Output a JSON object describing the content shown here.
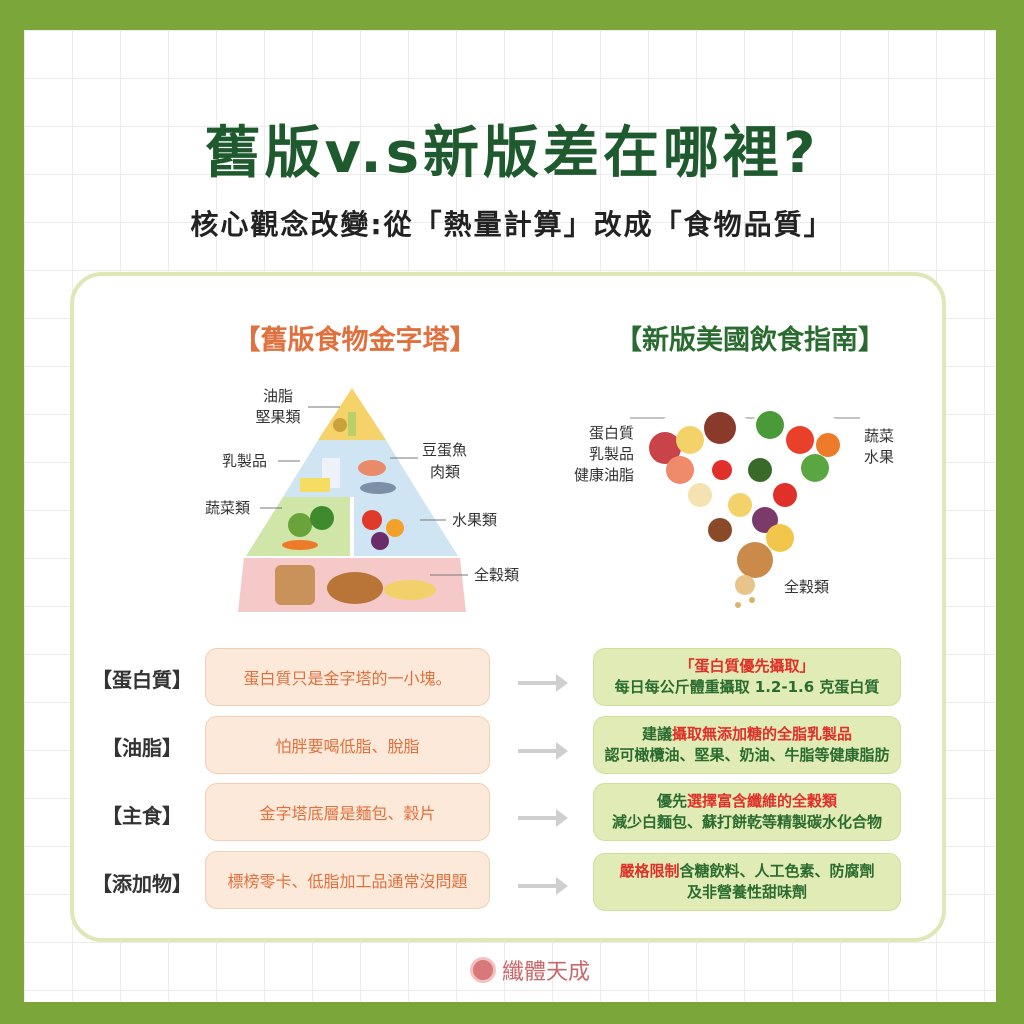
{
  "title": "舊版v.s新版差在哪裡?",
  "subtitle": "核心觀念改變:從「熱量計算」改成「食物品質」",
  "old": {
    "heading": "【舊版食物金字塔】",
    "labels": {
      "fats": "油脂",
      "nuts": "堅果類",
      "dairy": "乳製品",
      "protein1": "豆蛋魚",
      "protein2": "肉類",
      "veg": "蔬菜類",
      "fruit": "水果類",
      "grain": "全穀類"
    }
  },
  "new": {
    "heading": "【新版美國飲食指南】",
    "labels": {
      "protein": "蛋白質",
      "dairy": "乳製品",
      "fats": "健康油脂",
      "veg": "蔬菜",
      "fruit": "水果",
      "grain": "全穀類"
    }
  },
  "rows": [
    {
      "label": "【蛋白質】",
      "old": "蛋白質只是金字塔的一小塊。",
      "new_red1": "「蛋白質優先攝取」",
      "new_line2": "每日每公斤體重攝取 1.2-1.6 克蛋白質"
    },
    {
      "label": "【油脂】",
      "old": "怕胖要喝低脂、脫脂",
      "new_pre": "建議",
      "new_red": "攝取無添加糖的全脂乳製品",
      "new_line2": "認可橄欖油、堅果、奶油、牛脂等健康脂肪"
    },
    {
      "label": "【主食】",
      "old": "金字塔底層是麵包、穀片",
      "new_pre": "優先",
      "new_red": "選擇富含纖維的全穀類",
      "new_line2": "減少白麵包、蘇打餅乾等精製碳水化合物"
    },
    {
      "label": "【添加物】",
      "old": "標榜零卡、低脂加工品通常沒問題",
      "new_red": "嚴格限制",
      "new_post": "含糖飲料、人工色素、防腐劑",
      "new_line2": "及非營養性甜味劑"
    }
  ],
  "logo": "纖體天成",
  "colors": {
    "border": "#7aa63a",
    "title": "#1f5a2e",
    "old_accent": "#e0713e",
    "new_accent": "#2a6b2f",
    "highlight": "#e0302a"
  }
}
